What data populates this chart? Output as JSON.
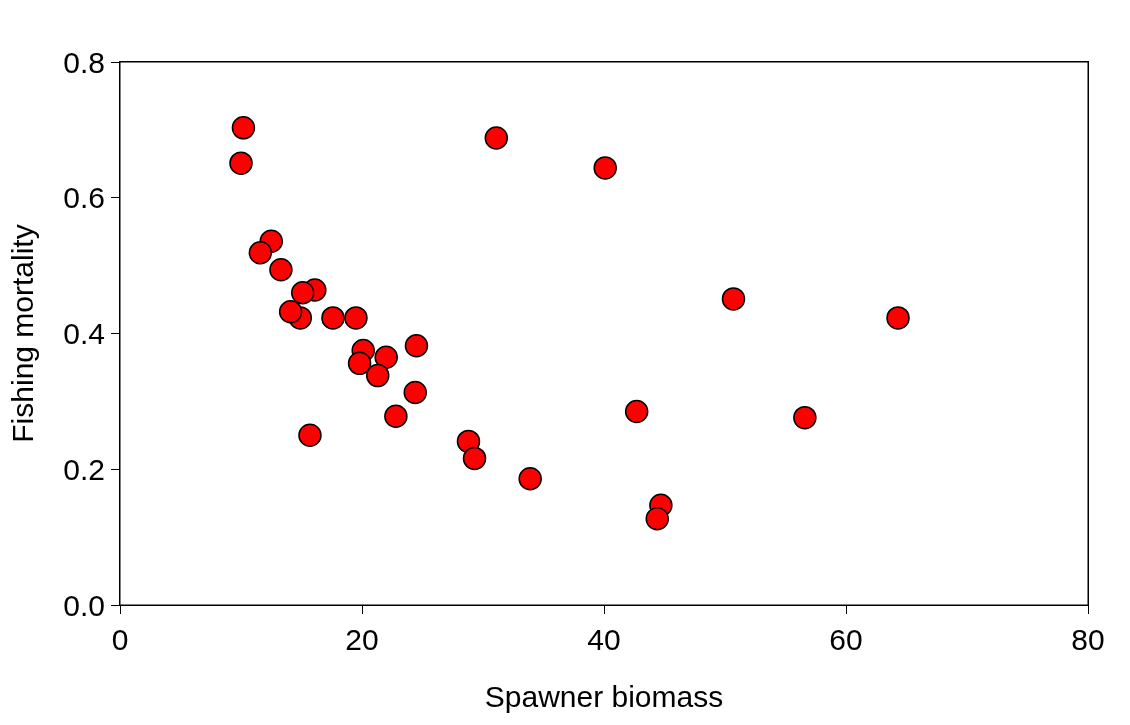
{
  "chart_data": {
    "type": "scatter",
    "xlabel": "Spawner biomass",
    "ylabel": "Fishing mortality",
    "x": [
      10.2,
      10.0,
      12.5,
      11.6,
      13.3,
      16.1,
      15.1,
      14.9,
      14.1,
      17.6,
      19.5,
      20.1,
      24.5,
      22.0,
      21.3,
      19.8,
      24.4,
      22.8,
      15.7,
      28.8,
      29.3,
      31.1,
      33.9,
      40.1,
      42.7,
      44.7,
      44.4,
      50.7,
      56.6,
      64.3
    ],
    "values": [
      0.703,
      0.651,
      0.536,
      0.519,
      0.494,
      0.464,
      0.46,
      0.423,
      0.432,
      0.423,
      0.423,
      0.375,
      0.382,
      0.365,
      0.338,
      0.356,
      0.313,
      0.278,
      0.25,
      0.241,
      0.216,
      0.688,
      0.186,
      0.644,
      0.285,
      0.147,
      0.127,
      0.451,
      0.276,
      0.423
    ],
    "color": "#ff0000",
    "marker": "circle",
    "xlim": [
      0,
      80
    ],
    "xticks": [
      0,
      20,
      40,
      60,
      80
    ],
    "ylim": [
      0,
      0.8
    ],
    "yticks": [
      {
        "value": 0,
        "label": "0.0"
      },
      {
        "value": 0.2,
        "label": "0.2"
      },
      {
        "value": 0.4,
        "label": "0.4"
      },
      {
        "value": 0.6,
        "label": "0.6"
      },
      {
        "value": 0.8,
        "label": "0.8"
      }
    ],
    "grid": false
  }
}
